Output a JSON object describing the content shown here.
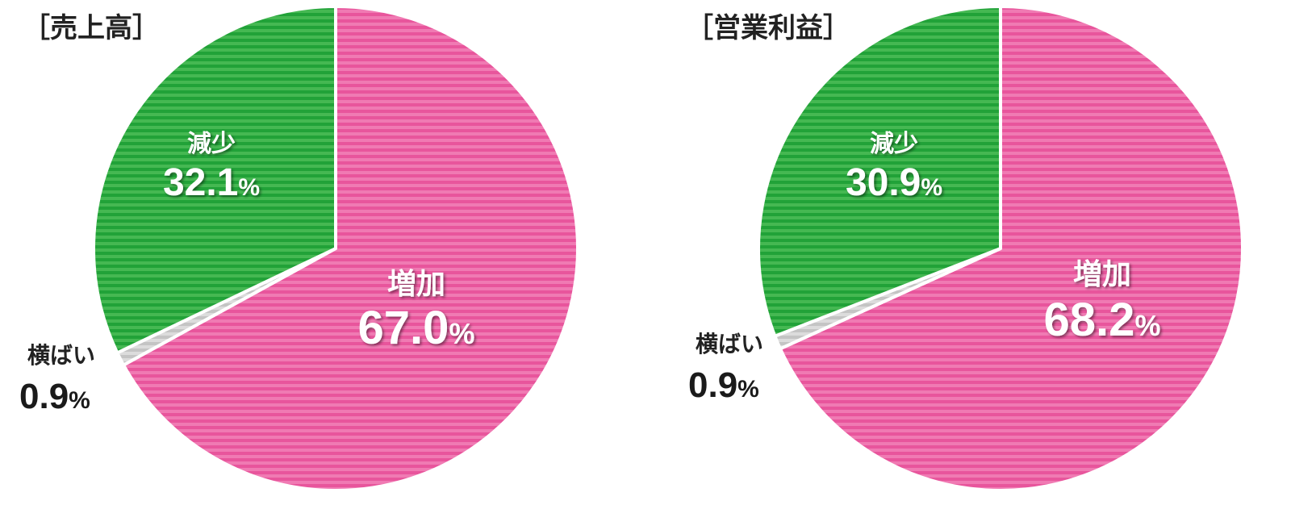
{
  "chart_data": [
    {
      "type": "pie",
      "title": "［売上高］",
      "slices": [
        {
          "label": "増加",
          "value": 67.0,
          "display": "67.0",
          "color": "#e8559c"
        },
        {
          "label": "横ばい",
          "value": 0.9,
          "display": "0.9",
          "color": "#c8c8c8"
        },
        {
          "label": "減少",
          "value": 32.1,
          "display": "32.1",
          "color": "#22a339"
        }
      ],
      "unit": "%"
    },
    {
      "type": "pie",
      "title": "［営業利益］",
      "slices": [
        {
          "label": "増加",
          "value": 68.2,
          "display": "68.2",
          "color": "#e8559c"
        },
        {
          "label": "横ばい",
          "value": 0.9,
          "display": "0.9",
          "color": "#c8c8c8"
        },
        {
          "label": "減少",
          "value": 30.9,
          "display": "30.9",
          "color": "#22a339"
        }
      ],
      "unit": "%"
    }
  ]
}
